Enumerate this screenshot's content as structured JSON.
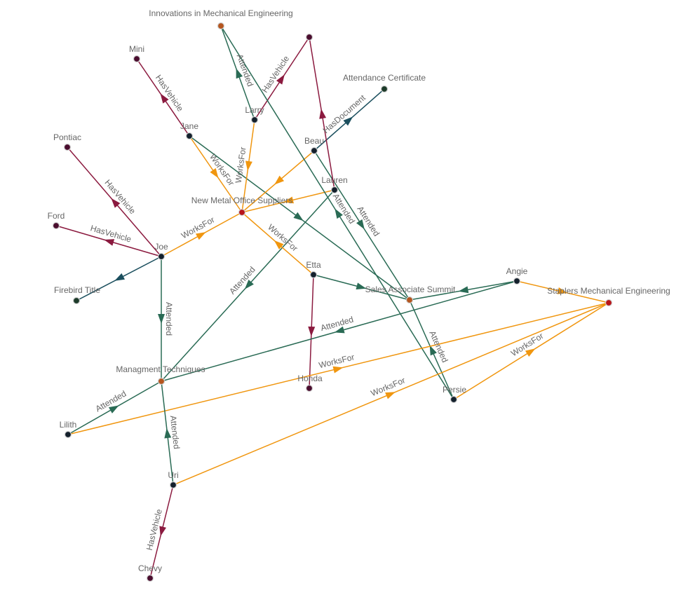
{
  "graph": {
    "nodes": [
      {
        "label": "Innovations in Mechanical Engineering",
        "color": "#b5561f"
      },
      {
        "label": "",
        "color": "#4a0d2e"
      },
      {
        "label": "Mini",
        "color": "#4a0d2e"
      },
      {
        "label": "Attendance Certificate",
        "color": "#1d3b2a"
      },
      {
        "label": "Larry",
        "color": "#14202c"
      },
      {
        "label": "Jane",
        "color": "#14202c"
      },
      {
        "label": "Pontiac",
        "color": "#4a0d2e"
      },
      {
        "label": "Beau",
        "color": "#14202c"
      },
      {
        "label": "Lauren",
        "color": "#14202c"
      },
      {
        "label": "New Metal Office Suppliers",
        "color": "#b81419"
      },
      {
        "label": "Ford",
        "color": "#4a0d2e"
      },
      {
        "label": "Joe",
        "color": "#14202c"
      },
      {
        "label": "Etta",
        "color": "#14202c"
      },
      {
        "label": "Firebird Title",
        "color": "#1d3b2a"
      },
      {
        "label": "Angie",
        "color": "#14202c"
      },
      {
        "label": "Sales Associate Summit",
        "color": "#b5561f"
      },
      {
        "label": "Staplers Mechanical Engineering",
        "color": "#b81419"
      },
      {
        "label": "Managment Techniques",
        "color": "#b5561f"
      },
      {
        "label": "Honda",
        "color": "#4a0d2e"
      },
      {
        "label": "Persie",
        "color": "#14202c"
      },
      {
        "label": "Lilith",
        "color": "#14202c"
      },
      {
        "label": "Uri",
        "color": "#14202c"
      },
      {
        "label": "Chevy",
        "color": "#4a0d2e"
      }
    ],
    "edges": [
      {
        "from": 5,
        "to": 2,
        "label": "HasVehicle",
        "color": "#8b1a3f"
      },
      {
        "from": 5,
        "to": 9,
        "label": "WorksFor",
        "color": "#f0960f"
      },
      {
        "from": 5,
        "to": 15,
        "label": "",
        "color": "#2a6b55"
      },
      {
        "from": 4,
        "to": 0,
        "label": "Attended",
        "color": "#2a6b55"
      },
      {
        "from": 4,
        "to": 1,
        "label": "HasVehicle",
        "color": "#8b1a3f"
      },
      {
        "from": 4,
        "to": 9,
        "label": "WorksFor",
        "color": "#f0960f"
      },
      {
        "from": 7,
        "to": 3,
        "label": "HasDocument",
        "color": "#1b4f5e"
      },
      {
        "from": 7,
        "to": 9,
        "label": "",
        "color": "#f0960f"
      },
      {
        "from": 7,
        "to": 15,
        "label": "Attended",
        "color": "#2a6b55"
      },
      {
        "from": 8,
        "to": 1,
        "label": "",
        "color": "#8b1a3f"
      },
      {
        "from": 8,
        "to": 9,
        "label": "",
        "color": "#f0960f"
      },
      {
        "from": 8,
        "to": 17,
        "label": "Attended",
        "color": "#2a6b55"
      },
      {
        "from": 19,
        "to": 0,
        "label": "Attended",
        "color": "#2a6b55"
      },
      {
        "from": 19,
        "to": 15,
        "label": "Attended",
        "color": "#2a6b55"
      },
      {
        "from": 19,
        "to": 16,
        "label": "WorksFor",
        "color": "#f0960f"
      },
      {
        "from": 11,
        "to": 6,
        "label": "HasVehicle",
        "color": "#8b1a3f"
      },
      {
        "from": 11,
        "to": 10,
        "label": "HasVehicle",
        "color": "#8b1a3f"
      },
      {
        "from": 11,
        "to": 13,
        "label": "",
        "color": "#1b4f5e"
      },
      {
        "from": 11,
        "to": 9,
        "label": "WorksFor",
        "color": "#f0960f"
      },
      {
        "from": 11,
        "to": 17,
        "label": "Attended",
        "color": "#2a6b55"
      },
      {
        "from": 12,
        "to": 9,
        "label": "WorksFor",
        "color": "#f0960f"
      },
      {
        "from": 12,
        "to": 15,
        "label": "",
        "color": "#2a6b55"
      },
      {
        "from": 12,
        "to": 18,
        "label": "",
        "color": "#8b1a3f"
      },
      {
        "from": 14,
        "to": 15,
        "label": "",
        "color": "#2a6b55"
      },
      {
        "from": 14,
        "to": 17,
        "label": "Attended",
        "color": "#2a6b55"
      },
      {
        "from": 14,
        "to": 16,
        "label": "",
        "color": "#f0960f"
      },
      {
        "from": 20,
        "to": 17,
        "label": "Attended",
        "color": "#2a6b55"
      },
      {
        "from": 20,
        "to": 16,
        "label": "WorksFor",
        "color": "#f0960f"
      },
      {
        "from": 21,
        "to": 17,
        "label": "Attended",
        "color": "#2a6b55"
      },
      {
        "from": 21,
        "to": 16,
        "label": "WorksFor",
        "color": "#f0960f"
      },
      {
        "from": 21,
        "to": 22,
        "label": "HasVehicle",
        "color": "#8b1a3f"
      }
    ]
  }
}
